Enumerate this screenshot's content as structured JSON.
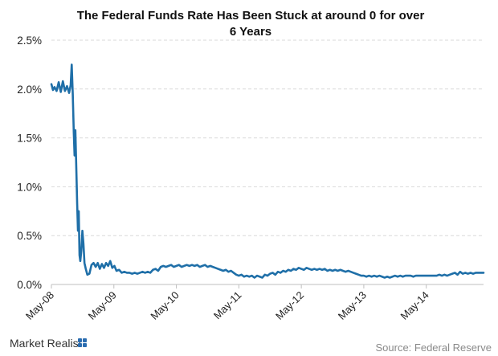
{
  "chart_data": {
    "type": "line",
    "title_lines": [
      "The Federal Funds Rate Has Been Stuck at around 0 for over",
      "6 Years"
    ],
    "xlabel": "",
    "ylabel": "",
    "ylim": [
      0,
      2.5
    ],
    "xlim": [
      0,
      83
    ],
    "y_ticks": [
      {
        "value": 2.5,
        "label": "2.5%"
      },
      {
        "value": 2.0,
        "label": "2.0%"
      },
      {
        "value": 1.5,
        "label": "1.5%"
      },
      {
        "value": 1.0,
        "label": "1.0%"
      },
      {
        "value": 0.5,
        "label": "0.5%"
      },
      {
        "value": 0.0,
        "label": "0.0%"
      }
    ],
    "x_ticks": [
      {
        "value": 0,
        "label": "May-08"
      },
      {
        "value": 12,
        "label": "May-09"
      },
      {
        "value": 24,
        "label": "May-10"
      },
      {
        "value": 36,
        "label": "May-11"
      },
      {
        "value": 48,
        "label": "May-12"
      },
      {
        "value": 60,
        "label": "May-13"
      },
      {
        "value": 72,
        "label": "May-14"
      }
    ],
    "grid": true,
    "legend": "none",
    "series": [
      {
        "color": "#1f6fa8",
        "points": [
          [
            0,
            2.05
          ],
          [
            0.3,
            1.99
          ],
          [
            0.6,
            2.02
          ],
          [
            1.0,
            1.98
          ],
          [
            1.4,
            2.07
          ],
          [
            1.8,
            1.97
          ],
          [
            2.2,
            2.08
          ],
          [
            2.6,
            1.98
          ],
          [
            3.0,
            2.03
          ],
          [
            3.4,
            1.96
          ],
          [
            3.7,
            2.04
          ],
          [
            3.9,
            2.25
          ],
          [
            4.1,
            1.95
          ],
          [
            4.3,
            1.55
          ],
          [
            4.45,
            1.32
          ],
          [
            4.6,
            1.58
          ],
          [
            4.8,
            1.15
          ],
          [
            4.95,
            0.82
          ],
          [
            5.1,
            0.55
          ],
          [
            5.25,
            0.75
          ],
          [
            5.4,
            0.3
          ],
          [
            5.55,
            0.24
          ],
          [
            5.75,
            0.35
          ],
          [
            5.95,
            0.55
          ],
          [
            6.15,
            0.42
          ],
          [
            6.35,
            0.22
          ],
          [
            6.6,
            0.16
          ],
          [
            6.9,
            0.1
          ],
          [
            7.3,
            0.11
          ],
          [
            7.7,
            0.2
          ],
          [
            8.1,
            0.22
          ],
          [
            8.5,
            0.18
          ],
          [
            8.9,
            0.22
          ],
          [
            9.3,
            0.16
          ],
          [
            9.7,
            0.21
          ],
          [
            10.1,
            0.17
          ],
          [
            10.5,
            0.22
          ],
          [
            10.9,
            0.19
          ],
          [
            11.3,
            0.24
          ],
          [
            11.7,
            0.17
          ],
          [
            12.1,
            0.19
          ],
          [
            12.5,
            0.14
          ],
          [
            13.0,
            0.15
          ],
          [
            13.5,
            0.12
          ],
          [
            14.0,
            0.13
          ],
          [
            14.5,
            0.12
          ],
          [
            15.0,
            0.12
          ],
          [
            15.5,
            0.11
          ],
          [
            16.0,
            0.12
          ],
          [
            16.5,
            0.11
          ],
          [
            17.0,
            0.12
          ],
          [
            17.5,
            0.13
          ],
          [
            18.0,
            0.12
          ],
          [
            18.5,
            0.13
          ],
          [
            19.0,
            0.12
          ],
          [
            19.5,
            0.15
          ],
          [
            20.0,
            0.16
          ],
          [
            20.5,
            0.14
          ],
          [
            21.0,
            0.18
          ],
          [
            21.5,
            0.19
          ],
          [
            22.0,
            0.18
          ],
          [
            22.5,
            0.19
          ],
          [
            23.0,
            0.2
          ],
          [
            23.5,
            0.18
          ],
          [
            24.0,
            0.19
          ],
          [
            24.5,
            0.2
          ],
          [
            25.0,
            0.18
          ],
          [
            25.5,
            0.19
          ],
          [
            26.0,
            0.2
          ],
          [
            26.5,
            0.19
          ],
          [
            27.0,
            0.2
          ],
          [
            27.5,
            0.19
          ],
          [
            28.0,
            0.2
          ],
          [
            28.5,
            0.18
          ],
          [
            29.0,
            0.19
          ],
          [
            29.5,
            0.2
          ],
          [
            30.0,
            0.18
          ],
          [
            30.5,
            0.19
          ],
          [
            31.0,
            0.18
          ],
          [
            31.5,
            0.17
          ],
          [
            32.0,
            0.16
          ],
          [
            32.5,
            0.15
          ],
          [
            33.0,
            0.14
          ],
          [
            33.5,
            0.15
          ],
          [
            34.0,
            0.13
          ],
          [
            34.5,
            0.14
          ],
          [
            35.0,
            0.12
          ],
          [
            35.5,
            0.1
          ],
          [
            36.0,
            0.09
          ],
          [
            36.5,
            0.1
          ],
          [
            37.0,
            0.08
          ],
          [
            37.5,
            0.09
          ],
          [
            38.0,
            0.08
          ],
          [
            38.5,
            0.09
          ],
          [
            39.0,
            0.07
          ],
          [
            39.5,
            0.09
          ],
          [
            40.0,
            0.08
          ],
          [
            40.5,
            0.07
          ],
          [
            41.0,
            0.1
          ],
          [
            41.5,
            0.09
          ],
          [
            42.0,
            0.11
          ],
          [
            42.5,
            0.12
          ],
          [
            43.0,
            0.1
          ],
          [
            43.5,
            0.13
          ],
          [
            44.0,
            0.12
          ],
          [
            44.5,
            0.14
          ],
          [
            45.0,
            0.13
          ],
          [
            45.5,
            0.15
          ],
          [
            46.0,
            0.14
          ],
          [
            46.5,
            0.16
          ],
          [
            47.0,
            0.15
          ],
          [
            47.5,
            0.17
          ],
          [
            48.0,
            0.16
          ],
          [
            48.5,
            0.15
          ],
          [
            49.0,
            0.17
          ],
          [
            49.5,
            0.16
          ],
          [
            50.0,
            0.15
          ],
          [
            50.5,
            0.16
          ],
          [
            51.0,
            0.15
          ],
          [
            51.5,
            0.16
          ],
          [
            52.0,
            0.15
          ],
          [
            52.5,
            0.16
          ],
          [
            53.0,
            0.14
          ],
          [
            53.5,
            0.15
          ],
          [
            54.0,
            0.14
          ],
          [
            54.5,
            0.15
          ],
          [
            55.0,
            0.14
          ],
          [
            55.5,
            0.15
          ],
          [
            56.0,
            0.14
          ],
          [
            56.5,
            0.13
          ],
          [
            57.0,
            0.14
          ],
          [
            57.5,
            0.13
          ],
          [
            58.0,
            0.12
          ],
          [
            58.5,
            0.11
          ],
          [
            59.0,
            0.1
          ],
          [
            59.5,
            0.09
          ],
          [
            60.0,
            0.09
          ],
          [
            60.5,
            0.08
          ],
          [
            61.0,
            0.09
          ],
          [
            61.5,
            0.08
          ],
          [
            62.0,
            0.09
          ],
          [
            62.5,
            0.08
          ],
          [
            63.0,
            0.09
          ],
          [
            63.5,
            0.08
          ],
          [
            64.0,
            0.07
          ],
          [
            64.5,
            0.08
          ],
          [
            65.0,
            0.07
          ],
          [
            65.5,
            0.08
          ],
          [
            66.0,
            0.09
          ],
          [
            66.5,
            0.08
          ],
          [
            67.0,
            0.09
          ],
          [
            67.5,
            0.08
          ],
          [
            68.0,
            0.09
          ],
          [
            68.5,
            0.09
          ],
          [
            69.0,
            0.09
          ],
          [
            69.5,
            0.08
          ],
          [
            70.0,
            0.09
          ],
          [
            70.5,
            0.09
          ],
          [
            71.0,
            0.09
          ],
          [
            71.5,
            0.09
          ],
          [
            72.0,
            0.09
          ],
          [
            72.5,
            0.09
          ],
          [
            73.0,
            0.09
          ],
          [
            73.5,
            0.09
          ],
          [
            74.0,
            0.09
          ],
          [
            74.5,
            0.1
          ],
          [
            75.0,
            0.09
          ],
          [
            75.5,
            0.1
          ],
          [
            76.0,
            0.09
          ],
          [
            76.5,
            0.1
          ],
          [
            77.0,
            0.11
          ],
          [
            77.5,
            0.12
          ],
          [
            78.0,
            0.1
          ],
          [
            78.5,
            0.13
          ],
          [
            79.0,
            0.11
          ],
          [
            79.5,
            0.12
          ],
          [
            80.0,
            0.11
          ],
          [
            80.5,
            0.12
          ],
          [
            81.0,
            0.11
          ],
          [
            81.5,
            0.12
          ],
          [
            82.0,
            0.12
          ],
          [
            82.5,
            0.12
          ],
          [
            83.0,
            0.12
          ]
        ]
      }
    ]
  },
  "footer": {
    "brand": "Market Realist",
    "source": "Source: Federal Reserve",
    "brand_color": "#2a6cb0"
  }
}
